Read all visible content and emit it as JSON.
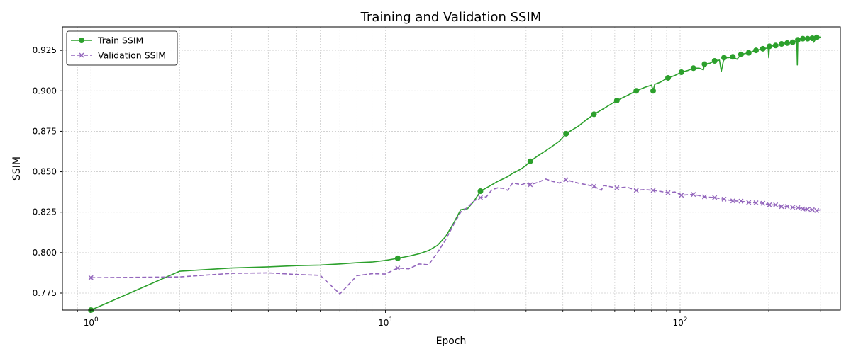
{
  "chart_data": {
    "type": "line",
    "title": "Training and Validation SSIM",
    "xlabel": "Epoch",
    "ylabel": "SSIM",
    "xscale": "log",
    "xlim": [
      0.8,
      350
    ],
    "ylim": [
      0.7645,
      0.9395
    ],
    "grid": true,
    "legend_position": "top-left",
    "x_ticks": [
      {
        "value": 1,
        "base": "10",
        "exp": "0"
      },
      {
        "value": 10,
        "base": "10",
        "exp": "1"
      },
      {
        "value": 100,
        "base": "10",
        "exp": "2"
      }
    ],
    "y_ticks": [
      {
        "value": 0.775,
        "label": "0.775"
      },
      {
        "value": 0.8,
        "label": "0.800"
      },
      {
        "value": 0.825,
        "label": "0.825"
      },
      {
        "value": 0.85,
        "label": "0.850"
      },
      {
        "value": 0.875,
        "label": "0.875"
      },
      {
        "value": 0.9,
        "label": "0.900"
      },
      {
        "value": 0.925,
        "label": "0.925"
      }
    ],
    "series": [
      {
        "name": "Train SSIM",
        "color": "#2ca02c",
        "linestyle": "solid",
        "marker": "circle",
        "points": [
          [
            1,
            0.7645
          ],
          [
            2,
            0.7885
          ],
          [
            3,
            0.7905
          ],
          [
            4,
            0.7912
          ],
          [
            5,
            0.792
          ],
          [
            6,
            0.7923
          ],
          [
            7,
            0.793
          ],
          [
            8,
            0.7938
          ],
          [
            9,
            0.7942
          ],
          [
            10,
            0.7952
          ],
          [
            11,
            0.7965
          ],
          [
            12,
            0.7978
          ],
          [
            13,
            0.7993
          ],
          [
            14,
            0.8013
          ],
          [
            15,
            0.8045
          ],
          [
            16,
            0.81
          ],
          [
            17,
            0.818
          ],
          [
            18,
            0.8265
          ],
          [
            19,
            0.8272
          ],
          [
            20,
            0.832
          ],
          [
            21,
            0.838
          ],
          [
            22,
            0.84
          ],
          [
            23,
            0.842
          ],
          [
            24,
            0.844
          ],
          [
            25,
            0.8455
          ],
          [
            26,
            0.847
          ],
          [
            27,
            0.849
          ],
          [
            28,
            0.8505
          ],
          [
            29,
            0.852
          ],
          [
            30,
            0.854
          ],
          [
            31,
            0.8565
          ],
          [
            33,
            0.86
          ],
          [
            35,
            0.863
          ],
          [
            37,
            0.866
          ],
          [
            39,
            0.869
          ],
          [
            41,
            0.8735
          ],
          [
            45,
            0.878
          ],
          [
            48,
            0.882
          ],
          [
            51,
            0.8855
          ],
          [
            55,
            0.889
          ],
          [
            61,
            0.894
          ],
          [
            66,
            0.897
          ],
          [
            71,
            0.9
          ],
          [
            76,
            0.9022
          ],
          [
            80,
            0.9035
          ],
          [
            81,
            0.9
          ],
          [
            82,
            0.904
          ],
          [
            86,
            0.9055
          ],
          [
            91,
            0.908
          ],
          [
            96,
            0.9095
          ],
          [
            101,
            0.9115
          ],
          [
            106,
            0.9125
          ],
          [
            111,
            0.914
          ],
          [
            116,
            0.914
          ],
          [
            120,
            0.913
          ],
          [
            121,
            0.9165
          ],
          [
            126,
            0.917
          ],
          [
            131,
            0.9185
          ],
          [
            136,
            0.919
          ],
          [
            138,
            0.912
          ],
          [
            141,
            0.9205
          ],
          [
            146,
            0.9205
          ],
          [
            151,
            0.921
          ],
          [
            156,
            0.9195
          ],
          [
            161,
            0.9225
          ],
          [
            171,
            0.9235
          ],
          [
            181,
            0.925
          ],
          [
            191,
            0.926
          ],
          [
            199,
            0.9265
          ],
          [
            200,
            0.9205
          ],
          [
            201,
            0.9275
          ],
          [
            211,
            0.928
          ],
          [
            221,
            0.929
          ],
          [
            231,
            0.9295
          ],
          [
            241,
            0.93
          ],
          [
            249,
            0.9305
          ],
          [
            250,
            0.916
          ],
          [
            251,
            0.9315
          ],
          [
            256,
            0.932
          ],
          [
            261,
            0.9322
          ],
          [
            271,
            0.9322
          ],
          [
            281,
            0.9325
          ],
          [
            284,
            0.93
          ],
          [
            291,
            0.933
          ],
          [
            300,
            0.9332
          ]
        ],
        "marker_points": [
          1,
          11,
          21,
          31,
          41,
          51,
          61,
          71,
          81,
          91,
          101,
          111,
          121,
          131,
          141,
          151,
          161,
          171,
          181,
          191,
          201,
          211,
          221,
          231,
          241,
          251,
          261,
          271,
          281,
          291
        ]
      },
      {
        "name": "Validation SSIM",
        "color": "#9467bd",
        "linestyle": "dashed",
        "marker": "x",
        "points": [
          [
            1,
            0.7845
          ],
          [
            2,
            0.785
          ],
          [
            3,
            0.7872
          ],
          [
            4,
            0.7875
          ],
          [
            5,
            0.7865
          ],
          [
            6,
            0.786
          ],
          [
            7,
            0.7745
          ],
          [
            8,
            0.7858
          ],
          [
            9,
            0.787
          ],
          [
            10,
            0.7868
          ],
          [
            11,
            0.7905
          ],
          [
            12,
            0.79
          ],
          [
            13,
            0.793
          ],
          [
            14,
            0.7925
          ],
          [
            15,
            0.8
          ],
          [
            16,
            0.808
          ],
          [
            17,
            0.817
          ],
          [
            18,
            0.825
          ],
          [
            19,
            0.828
          ],
          [
            20,
            0.832
          ],
          [
            21,
            0.834
          ],
          [
            22,
            0.8345
          ],
          [
            23,
            0.839
          ],
          [
            24,
            0.84
          ],
          [
            25,
            0.8398
          ],
          [
            26,
            0.8385
          ],
          [
            27,
            0.843
          ],
          [
            28,
            0.8425
          ],
          [
            29,
            0.842
          ],
          [
            30,
            0.843
          ],
          [
            31,
            0.842
          ],
          [
            33,
            0.8435
          ],
          [
            35,
            0.8455
          ],
          [
            37,
            0.844
          ],
          [
            39,
            0.843
          ],
          [
            41,
            0.845
          ],
          [
            45,
            0.843
          ],
          [
            48,
            0.842
          ],
          [
            51,
            0.841
          ],
          [
            54,
            0.8385
          ],
          [
            55,
            0.8415
          ],
          [
            61,
            0.84
          ],
          [
            66,
            0.8405
          ],
          [
            71,
            0.8385
          ],
          [
            76,
            0.839
          ],
          [
            81,
            0.8385
          ],
          [
            86,
            0.8378
          ],
          [
            91,
            0.837
          ],
          [
            96,
            0.8375
          ],
          [
            101,
            0.8355
          ],
          [
            111,
            0.836
          ],
          [
            121,
            0.8345
          ],
          [
            131,
            0.834
          ],
          [
            141,
            0.833
          ],
          [
            151,
            0.832
          ],
          [
            161,
            0.8318
          ],
          [
            171,
            0.831
          ],
          [
            181,
            0.8308
          ],
          [
            191,
            0.8305
          ],
          [
            201,
            0.8295
          ],
          [
            211,
            0.8295
          ],
          [
            221,
            0.8285
          ],
          [
            231,
            0.8285
          ],
          [
            241,
            0.828
          ],
          [
            251,
            0.8278
          ],
          [
            261,
            0.827
          ],
          [
            271,
            0.8268
          ],
          [
            281,
            0.8265
          ],
          [
            291,
            0.826
          ],
          [
            300,
            0.8265
          ]
        ],
        "marker_points": [
          1,
          11,
          21,
          31,
          41,
          51,
          61,
          71,
          81,
          91,
          101,
          111,
          121,
          131,
          141,
          151,
          161,
          171,
          181,
          191,
          201,
          211,
          221,
          231,
          241,
          251,
          261,
          271,
          281,
          291
        ]
      }
    ]
  }
}
